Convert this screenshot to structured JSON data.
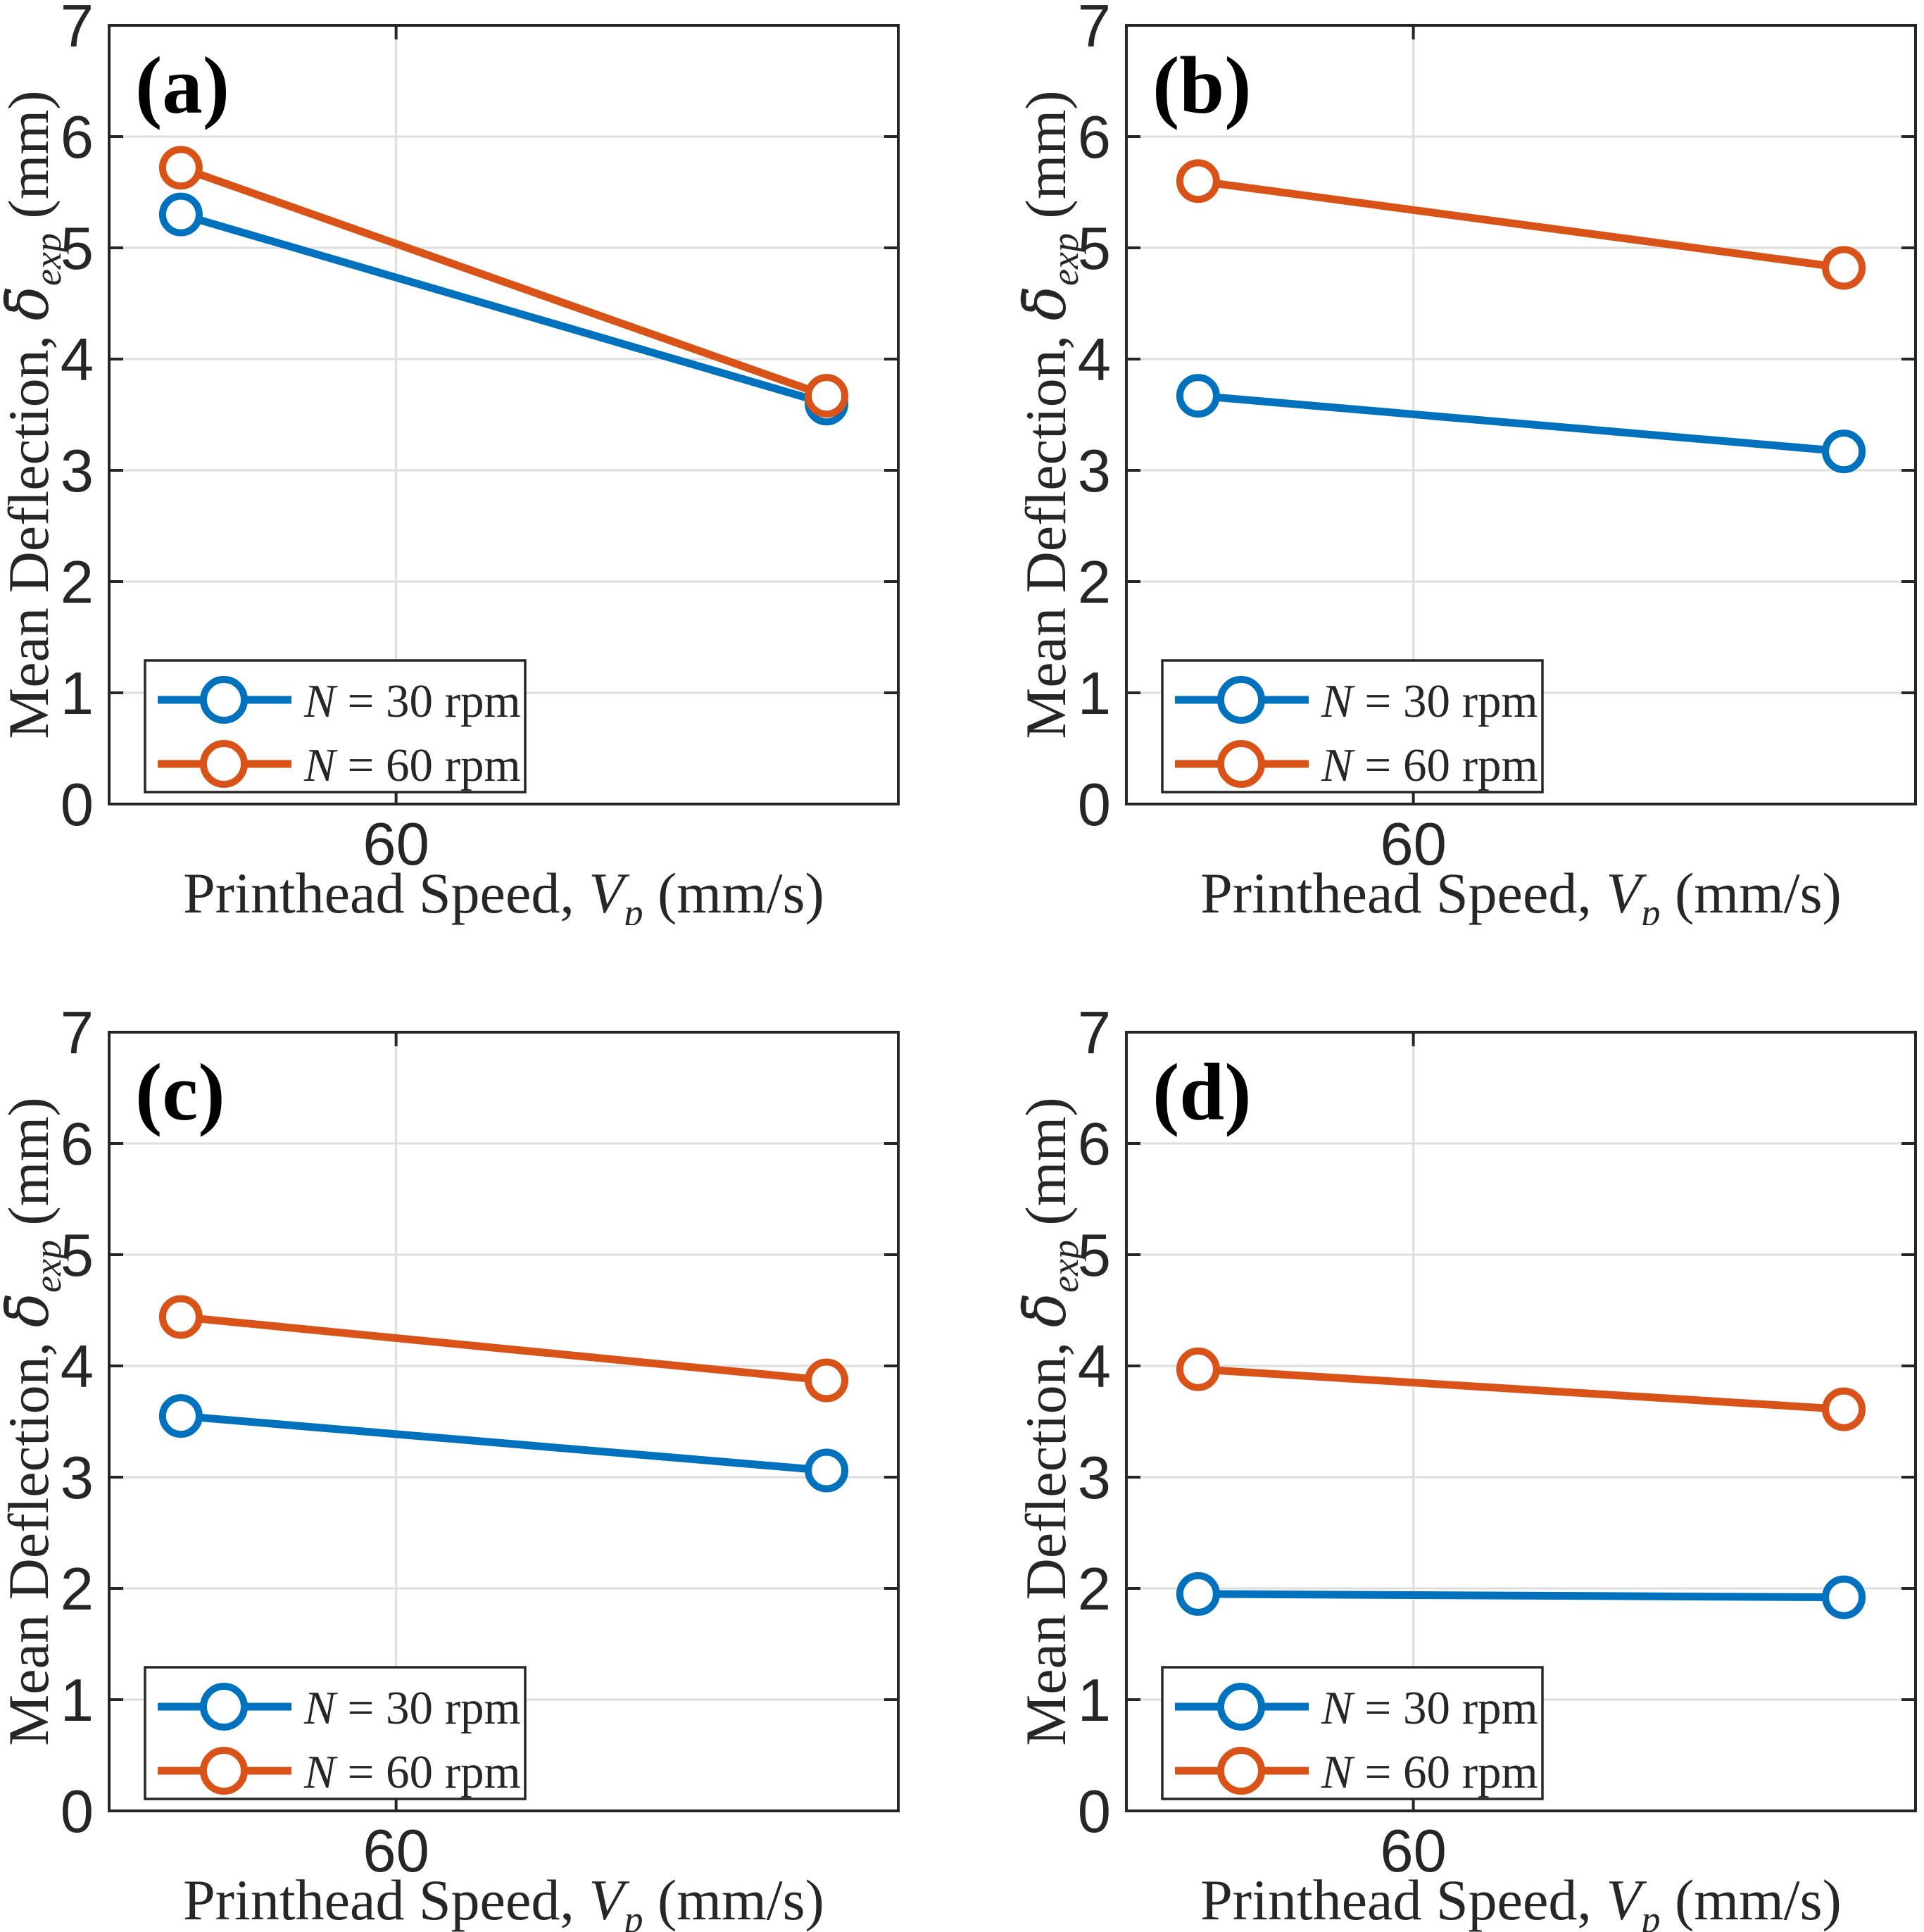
{
  "figure": {
    "background": "#ffffff",
    "colors": {
      "blue": "#0072BD",
      "orange": "#D95319",
      "axis": "#262626",
      "grid": "#DEDEDE",
      "tick_label": "#262626",
      "legend_border": "#262626",
      "legend_background": "#ffffff"
    }
  },
  "labels": {
    "x_label": {
      "prefix": "Printhead Speed, ",
      "var": "V",
      "sub": "p",
      "suffix": " (mm/s)"
    },
    "y_label": {
      "prefix": "Mean Deflection, ",
      "var": "δ̄",
      "sub": "exp",
      "suffix": " (mm)"
    },
    "legend_entries": [
      {
        "var": "N",
        "rest": " = 30 rpm",
        "color": "#0072BD"
      },
      {
        "var": "N",
        "rest": " = 60 rpm",
        "color": "#D95319"
      }
    ]
  },
  "chart_data": [
    {
      "type": "line",
      "panel_label": "(a)",
      "xlabel": "Printhead Speed, Vp (mm/s)",
      "ylabel": "Mean Deflection, δ̄exp (mm)",
      "x": [
        45,
        90
      ],
      "xlim": [
        40,
        95
      ],
      "ylim": [
        0,
        7
      ],
      "x_ticks": [
        60
      ],
      "y_ticks": [
        0,
        1,
        2,
        3,
        4,
        5,
        6,
        7
      ],
      "grid": true,
      "legend_position": "lower left",
      "series": [
        {
          "name": "N = 30 rpm",
          "color": "#0072BD",
          "values": [
            5.3,
            3.6
          ]
        },
        {
          "name": "N = 60 rpm",
          "color": "#D95319",
          "values": [
            5.72,
            3.67
          ]
        }
      ]
    },
    {
      "type": "line",
      "panel_label": "(b)",
      "xlabel": "Printhead Speed, Vp (mm/s)",
      "ylabel": "Mean Deflection, δ̄exp (mm)",
      "x": [
        45,
        90
      ],
      "xlim": [
        40,
        95
      ],
      "ylim": [
        0,
        7
      ],
      "x_ticks": [
        60
      ],
      "y_ticks": [
        0,
        1,
        2,
        3,
        4,
        5,
        6,
        7
      ],
      "grid": true,
      "legend_position": "lower left",
      "series": [
        {
          "name": "N = 30 rpm",
          "color": "#0072BD",
          "values": [
            3.67,
            3.17
          ]
        },
        {
          "name": "N = 60 rpm",
          "color": "#D95319",
          "values": [
            5.6,
            4.82
          ]
        }
      ]
    },
    {
      "type": "line",
      "panel_label": "(c)",
      "xlabel": "Printhead Speed, Vp (mm/s)",
      "ylabel": "Mean Deflection, δ̄exp (mm)",
      "x": [
        45,
        90
      ],
      "xlim": [
        40,
        95
      ],
      "ylim": [
        0,
        7
      ],
      "x_ticks": [
        60
      ],
      "y_ticks": [
        0,
        1,
        2,
        3,
        4,
        5,
        6,
        7
      ],
      "grid": true,
      "legend_position": "lower left",
      "series": [
        {
          "name": "N = 30 rpm",
          "color": "#0072BD",
          "values": [
            3.55,
            3.06
          ]
        },
        {
          "name": "N = 60 rpm",
          "color": "#D95319",
          "values": [
            4.44,
            3.87
          ]
        }
      ]
    },
    {
      "type": "line",
      "panel_label": "(d)",
      "xlabel": "Printhead Speed, Vp (mm/s)",
      "ylabel": "Mean Deflection, δ̄exp (mm)",
      "x": [
        45,
        90
      ],
      "xlim": [
        40,
        95
      ],
      "ylim": [
        0,
        7
      ],
      "x_ticks": [
        60
      ],
      "y_ticks": [
        0,
        1,
        2,
        3,
        4,
        5,
        6,
        7
      ],
      "grid": true,
      "legend_position": "lower left",
      "series": [
        {
          "name": "N = 30 rpm",
          "color": "#0072BD",
          "values": [
            1.95,
            1.92
          ]
        },
        {
          "name": "N = 60 rpm",
          "color": "#D95319",
          "values": [
            3.97,
            3.61
          ]
        }
      ]
    }
  ]
}
